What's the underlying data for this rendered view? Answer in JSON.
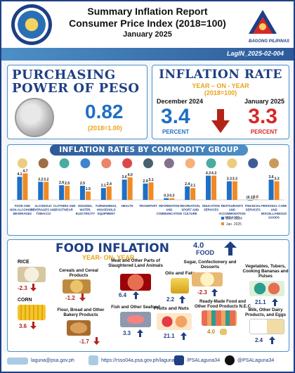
{
  "header": {
    "title_line1": "Summary Inflation Report",
    "title_line2": "Consumer Price Index (2018=100)",
    "title_line3": "January 2025",
    "ph_caption": "BAGONG PILIPINAS",
    "reference": "LagIN_2025-02-004"
  },
  "ppp": {
    "title": "PURCHASING POWER OF PESO",
    "value": "0.82",
    "base": "(2018=1.00)"
  },
  "inflation_rate": {
    "title": "INFLATION RATE",
    "subtitle": "YEAR – ON - YEAR",
    "base": "(2018=100)",
    "month1": "December 2024",
    "value1": "3.4",
    "unit1": "PERCENT",
    "month2": "January 2025",
    "value2": "3.3",
    "unit2": "PERCENT",
    "colors": {
      "dec": "#1f6fc4",
      "jan": "#d62828"
    }
  },
  "commodity": {
    "title": "INFLATION RATES BY COMMODITY GROUP"
  },
  "chart_data": {
    "type": "bar",
    "title": "INFLATION RATES BY COMMODITY GROUP",
    "categories": [
      "FOOD AND NON-ALCOHOLIC BEVERAGES",
      "ALCOHOLIC BEVERAGES AND TOBACCO",
      "CLOTHING AND FOOTWEAR",
      "HOUSING, WATER, ELECTRICITY",
      "FURNISHINGS, HOUSEHOLD EQUIPMENT",
      "HEALTH",
      "TRANSPORT",
      "INFORMATION AND COMMUNICATION",
      "RECREATION, SPORT AND CULTURE",
      "EDUCATION SERVICES",
      "RESTAURANTS AND ACCOMMODATION SERVICES",
      "FINANCIAL SERVICES",
      "PERSONAL CARE AND MISCELLANEOUS GOODS"
    ],
    "series": [
      {
        "name": "Dec. 2024",
        "values": [
          4.1,
          3.2,
          2.6,
          2.5,
          2.1,
          3.6,
          2.9,
          0.3,
          2.4,
          4.3,
          3.3,
          -0.1,
          3.6
        ],
        "color": "#1f6fc4"
      },
      {
        "name": "Jan. 2025",
        "values": [
          4.7,
          3.2,
          2.5,
          1.5,
          2.4,
          4.0,
          3.1,
          0.3,
          2.1,
          4.3,
          3.3,
          0.0,
          3.3
        ],
        "color": "#f08a24"
      }
    ],
    "data_labels": [
      [
        "4.1",
        "4.7"
      ],
      [
        "3.2",
        "3.2"
      ],
      [
        "2.6",
        "2.5"
      ],
      [
        "2.5",
        "1.5"
      ],
      [
        "2.1",
        "2.4"
      ],
      [
        "3.6",
        "4.0"
      ],
      [
        "2.9",
        "3.1"
      ],
      [
        "0.3",
        "0.3"
      ],
      [
        "2.4",
        "2.1"
      ],
      [
        "4.3",
        "4.3"
      ],
      [
        "3.3",
        "3.3"
      ],
      [
        "(0.1)",
        "0.0"
      ],
      [
        "3.6",
        "3.3"
      ]
    ],
    "legend": "bottom-right"
  },
  "food": {
    "title": "FOOD INFLATION",
    "subtitle": "YEAR- ON- YEAR",
    "rate_value": "4.0",
    "rate_label": "FOOD",
    "items": [
      {
        "label": "RICE",
        "value": "-2.3",
        "dir": "down"
      },
      {
        "label": "CORN",
        "value": "3.6",
        "dir": "down"
      },
      {
        "label": "Cereals and Cereal Products",
        "value": "-1.2",
        "dir": "down"
      },
      {
        "label": "Flour, Bread and Other Bakery Products",
        "value": "-1.7",
        "dir": "down"
      },
      {
        "label": "Meat and Other Parts of Slaughtered Land Animals",
        "value": "6.4",
        "dir": "up"
      },
      {
        "label": "Fish and Other Seafood",
        "value": "3.3",
        "dir": "up"
      },
      {
        "label": "Oils and Fats",
        "value": "2.2",
        "dir": "up"
      },
      {
        "label": "Fruits and Nuts",
        "value": "21.1",
        "dir": "up"
      },
      {
        "label": "Sugar, Confectionery and Desserts",
        "value": "-2.3",
        "dir": "up"
      },
      {
        "label": "Ready-Made Food and Other Food Products N.E.C",
        "value": "4.0",
        "dir": "none"
      },
      {
        "label": "Vegetables, Tubers, Cooking Bananas and Pulses",
        "value": "21.1",
        "dir": "up"
      },
      {
        "label": "Milk, Other Dairy Products, and Eggs",
        "value": "2.4",
        "dir": "up"
      }
    ]
  },
  "footer": {
    "email": "laguna@psa.gov.ph",
    "website": "https://rsso04a.psa.gov.ph/laguna",
    "facebook": "/PSALaguna34",
    "twitter": "@PSALaguna34"
  }
}
